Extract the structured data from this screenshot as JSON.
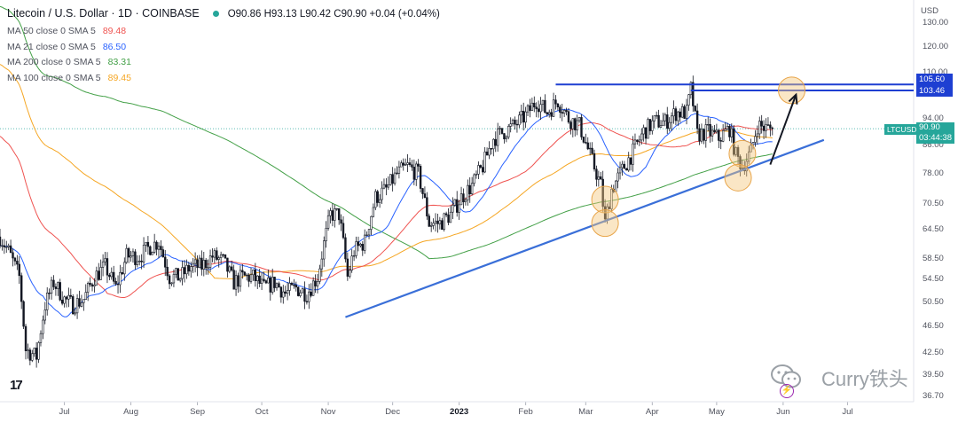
{
  "header": {
    "title": "Litecoin / U.S. Dollar · 1D · COINBASE",
    "ohlc": "O90.86 H93.13 L90.42 C90.90 +0.04 (+0.04%)"
  },
  "indicators": [
    {
      "label": "MA 50 close 0 SMA 5",
      "value": "89.48",
      "color": "#ef5350"
    },
    {
      "label": "MA 21 close 0 SMA 5",
      "value": "86.50",
      "color": "#2962ff"
    },
    {
      "label": "MA 200 close 0 SMA 5",
      "value": "83.31",
      "color": "#43a047"
    },
    {
      "label": "MA 100 close 0 SMA 5",
      "value": "89.45",
      "color": "#f5a623"
    }
  ],
  "axis": {
    "currency": "USD",
    "y_ticks": [
      "130.00",
      "120.00",
      "110.00",
      "94.00",
      "86.00",
      "78.00",
      "70.50",
      "64.50",
      "58.50",
      "54.50",
      "50.50",
      "46.50",
      "42.50",
      "39.50",
      "36.70"
    ],
    "x_ticks": [
      {
        "label": "Jul",
        "bold": false
      },
      {
        "label": "Aug",
        "bold": false
      },
      {
        "label": "Sep",
        "bold": false
      },
      {
        "label": "Oct",
        "bold": false
      },
      {
        "label": "Nov",
        "bold": false
      },
      {
        "label": "Dec",
        "bold": false
      },
      {
        "label": "2023",
        "bold": true
      },
      {
        "label": "Feb",
        "bold": false
      },
      {
        "label": "Mar",
        "bold": false
      },
      {
        "label": "Apr",
        "bold": false
      },
      {
        "label": "May",
        "bold": false
      },
      {
        "label": "Jun",
        "bold": false
      },
      {
        "label": "Jul",
        "bold": false
      }
    ]
  },
  "price_labels": {
    "level_high": "105.60",
    "level_low": "103.46",
    "ticker": "LTCUSD",
    "last_price": "90.90",
    "countdown": "03:44:38"
  },
  "watermark": {
    "text": "Curry铁头"
  },
  "colors": {
    "up": "#26a69a",
    "candle": "#131722",
    "level": "#1e3fd2",
    "trend": "#3a6fd8",
    "circle": "#f5c77e",
    "arrow": "#131722"
  },
  "chart_data": {
    "type": "candlestick",
    "symbol": "LTCUSD",
    "interval": "1D",
    "x_range": [
      "2022-06-01",
      "2023-07-31"
    ],
    "y_scale": "log",
    "ylim": [
      36.7,
      135
    ],
    "last_close": 90.9,
    "close_path": [
      [
        "2022-06-01",
        63
      ],
      [
        "2022-06-05",
        60
      ],
      [
        "2022-06-10",
        55
      ],
      [
        "2022-06-13",
        43
      ],
      [
        "2022-06-18",
        42
      ],
      [
        "2022-06-22",
        50
      ],
      [
        "2022-06-26",
        54
      ],
      [
        "2022-07-01",
        51
      ],
      [
        "2022-07-05",
        50
      ],
      [
        "2022-07-10",
        51
      ],
      [
        "2022-07-15",
        55
      ],
      [
        "2022-07-20",
        57
      ],
      [
        "2022-07-25",
        53
      ],
      [
        "2022-07-30",
        59
      ],
      [
        "2022-08-05",
        59
      ],
      [
        "2022-08-10",
        61
      ],
      [
        "2022-08-14",
        62
      ],
      [
        "2022-08-19",
        55
      ],
      [
        "2022-08-24",
        55
      ],
      [
        "2022-08-29",
        57
      ],
      [
        "2022-09-03",
        57
      ],
      [
        "2022-09-08",
        59
      ],
      [
        "2022-09-13",
        58
      ],
      [
        "2022-09-18",
        54
      ],
      [
        "2022-09-22",
        55
      ],
      [
        "2022-09-27",
        55
      ],
      [
        "2022-10-02",
        53
      ],
      [
        "2022-10-07",
        54
      ],
      [
        "2022-10-12",
        52
      ],
      [
        "2022-10-17",
        53
      ],
      [
        "2022-10-22",
        52
      ],
      [
        "2022-10-27",
        55
      ],
      [
        "2022-11-02",
        68
      ],
      [
        "2022-11-06",
        68
      ],
      [
        "2022-11-10",
        55
      ],
      [
        "2022-11-13",
        60
      ],
      [
        "2022-11-18",
        62
      ],
      [
        "2022-11-23",
        72
      ],
      [
        "2022-11-28",
        74
      ],
      [
        "2022-12-03",
        78
      ],
      [
        "2022-12-08",
        80
      ],
      [
        "2022-12-13",
        78
      ],
      [
        "2022-12-18",
        66
      ],
      [
        "2022-12-23",
        66
      ],
      [
        "2022-12-28",
        68
      ],
      [
        "2023-01-02",
        72
      ],
      [
        "2023-01-07",
        75
      ],
      [
        "2023-01-12",
        80
      ],
      [
        "2023-01-17",
        88
      ],
      [
        "2023-01-22",
        90
      ],
      [
        "2023-01-27",
        92
      ],
      [
        "2023-02-01",
        95
      ],
      [
        "2023-02-06",
        100
      ],
      [
        "2023-02-11",
        96
      ],
      [
        "2023-02-16",
        100
      ],
      [
        "2023-02-21",
        94
      ],
      [
        "2023-02-26",
        92
      ],
      [
        "2023-03-03",
        83
      ],
      [
        "2023-03-08",
        75
      ],
      [
        "2023-03-10",
        66
      ],
      [
        "2023-03-13",
        74
      ],
      [
        "2023-03-18",
        79
      ],
      [
        "2023-03-23",
        84
      ],
      [
        "2023-03-28",
        90
      ],
      [
        "2023-04-02",
        93
      ],
      [
        "2023-04-07",
        93
      ],
      [
        "2023-04-12",
        96
      ],
      [
        "2023-04-17",
        96
      ],
      [
        "2023-04-19",
        104
      ],
      [
        "2023-04-22",
        89
      ],
      [
        "2023-04-27",
        90
      ],
      [
        "2023-05-02",
        88
      ],
      [
        "2023-05-07",
        91
      ],
      [
        "2023-05-10",
        83
      ],
      [
        "2023-05-13",
        80
      ],
      [
        "2023-05-17",
        84
      ],
      [
        "2023-05-20",
        92
      ],
      [
        "2023-05-24",
        91
      ],
      [
        "2023-05-27",
        90.9
      ]
    ],
    "annotations": {
      "horizontal_levels": [
        {
          "price": 105.6,
          "from": "2023-02-15",
          "to": "2023-07-31"
        },
        {
          "price": 103.46,
          "from": "2023-04-19",
          "to": "2023-07-31"
        }
      ],
      "trendline": {
        "from": [
          "2022-11-09",
          48.0
        ],
        "to": [
          "2023-06-20",
          87.5
        ]
      },
      "circles": [
        [
          "2023-03-10",
          71.5
        ],
        [
          "2023-03-10",
          66.0
        ],
        [
          "2023-05-13",
          83.5
        ],
        [
          "2023-05-11",
          77.0
        ],
        [
          "2023-06-05",
          103.5
        ]
      ],
      "arrow": {
        "from": [
          "2023-05-26",
          80.5
        ],
        "to": [
          "2023-06-07",
          102.0
        ]
      }
    }
  }
}
